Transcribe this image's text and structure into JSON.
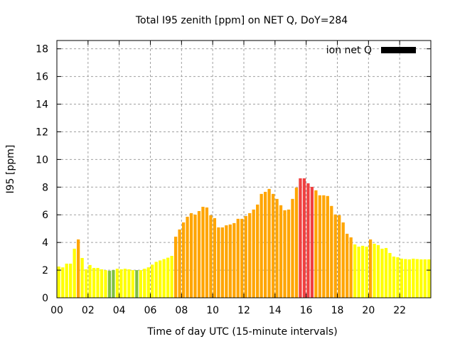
{
  "chart_data": {
    "type": "bar",
    "title": "Total I95 zenith [ppm] on NET Q, DoY=284",
    "xlabel": "Time of day UTC (15-minute intervals)",
    "ylabel": "I95 [ppm]",
    "xlim": [
      0,
      24
    ],
    "ylim": [
      0,
      18.6
    ],
    "xticks": [
      "00",
      "02",
      "04",
      "06",
      "08",
      "10",
      "12",
      "14",
      "16",
      "18",
      "20",
      "22"
    ],
    "yticks": [
      "0",
      "2",
      "4",
      "6",
      "8",
      "10",
      "12",
      "14",
      "16",
      "18"
    ],
    "grid": true,
    "legend": {
      "position": "top-right",
      "label": "ion net Q",
      "color": "#000000"
    },
    "interval_hours": 0.25,
    "colors": {
      "green": "#80c040",
      "yellow": "#ffff00",
      "orange": "#ffa500",
      "red": "#f04040"
    },
    "values": [
      2.26,
      2.2,
      2.47,
      2.47,
      3.55,
      4.22,
      2.88,
      2.06,
      2.37,
      2.16,
      2.16,
      2.06,
      2.0,
      1.95,
      2.0,
      2.1,
      2.06,
      2.1,
      2.06,
      2.0,
      2.0,
      2.0,
      2.1,
      2.2,
      2.4,
      2.6,
      2.7,
      2.8,
      2.9,
      3.03,
      4.42,
      4.94,
      5.45,
      5.86,
      6.12,
      6.01,
      6.27,
      6.58,
      6.53,
      5.97,
      5.76,
      5.09,
      5.09,
      5.24,
      5.3,
      5.4,
      5.71,
      5.71,
      5.91,
      6.12,
      6.38,
      6.74,
      7.51,
      7.66,
      7.87,
      7.51,
      7.15,
      6.69,
      6.33,
      6.38,
      7.15,
      7.97,
      8.64,
      8.64,
      8.28,
      8.02,
      7.77,
      7.41,
      7.41,
      7.36,
      6.64,
      6.02,
      5.97,
      5.45,
      4.63,
      4.37,
      3.86,
      3.7,
      3.76,
      3.7,
      4.22,
      3.91,
      3.81,
      3.55,
      3.6,
      3.24,
      2.98,
      2.93,
      2.83,
      2.8,
      2.78,
      2.83,
      2.8,
      2.78,
      2.78,
      2.78
    ],
    "bar_colors": [
      "yellow",
      "yellow",
      "yellow",
      "yellow",
      "yellow",
      "orange",
      "yellow",
      "yellow",
      "yellow",
      "yellow",
      "yellow",
      "yellow",
      "yellow",
      "green",
      "green",
      "yellow",
      "yellow",
      "yellow",
      "yellow",
      "yellow",
      "green",
      "yellow",
      "yellow",
      "yellow",
      "yellow",
      "yellow",
      "yellow",
      "yellow",
      "yellow",
      "yellow",
      "orange",
      "orange",
      "orange",
      "orange",
      "orange",
      "orange",
      "orange",
      "orange",
      "orange",
      "orange",
      "orange",
      "orange",
      "orange",
      "orange",
      "orange",
      "orange",
      "orange",
      "orange",
      "orange",
      "orange",
      "orange",
      "orange",
      "orange",
      "orange",
      "orange",
      "orange",
      "orange",
      "orange",
      "orange",
      "orange",
      "orange",
      "orange",
      "red",
      "red",
      "red",
      "red",
      "orange",
      "orange",
      "orange",
      "orange",
      "orange",
      "orange",
      "orange",
      "orange",
      "orange",
      "orange",
      "yellow",
      "yellow",
      "yellow",
      "yellow",
      "orange",
      "yellow",
      "yellow",
      "yellow",
      "yellow",
      "yellow",
      "yellow",
      "yellow",
      "yellow",
      "yellow",
      "yellow",
      "yellow",
      "yellow",
      "yellow",
      "yellow",
      "yellow"
    ]
  }
}
